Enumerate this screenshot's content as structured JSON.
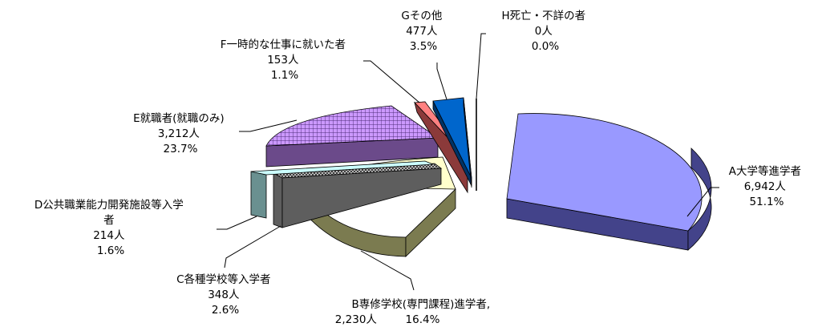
{
  "chart_data": {
    "type": "pie",
    "three_d": true,
    "exploded": true,
    "title": "",
    "legend": "none",
    "slices": [
      {
        "label": "A大学等進学者",
        "count": "6,942人",
        "percent": "51.1%",
        "value": 51.1,
        "color": "#9999ff",
        "side_color": "#43438a",
        "pattern": "none"
      },
      {
        "label": "B専修学校(専門課程)進学者,",
        "count": "2,230人",
        "percent": "16.4%",
        "value": 16.4,
        "color": "#ffffcc",
        "side_color": "#7b7b50",
        "pattern": "none"
      },
      {
        "label": "C各種学校等入学者",
        "count": "348人",
        "percent": "2.6%",
        "value": 2.6,
        "color": "#c0c0c0",
        "side_color": "#5e5e5e",
        "pattern": "crosshatch"
      },
      {
        "label": "D公共職業能力開発施設等入学者",
        "count": "214人",
        "percent": "1.6%",
        "value": 1.6,
        "color": "#ccffff",
        "side_color": "#6a9090",
        "pattern": "none"
      },
      {
        "label": "E就職者(就職のみ)",
        "count": "3,212人",
        "percent": "23.7%",
        "value": 23.7,
        "color": "#cc99ff",
        "side_color": "#6b4a8a",
        "pattern": "grid"
      },
      {
        "label": "F一時的な仕事に就いた者",
        "count": "153人",
        "percent": "1.1%",
        "value": 1.1,
        "color": "#ff8080",
        "side_color": "#8b3a3a",
        "pattern": "none"
      },
      {
        "label": "Gその他",
        "count": "477人",
        "percent": "3.5%",
        "value": 3.5,
        "color": "#0066cc",
        "side_color": "#003366",
        "pattern": "none"
      },
      {
        "label": "H死亡・不詳の者",
        "count": "0人",
        "percent": "0.0%",
        "value": 0.0,
        "color": "#ffffff",
        "side_color": "#000000",
        "pattern": "none"
      }
    ]
  }
}
